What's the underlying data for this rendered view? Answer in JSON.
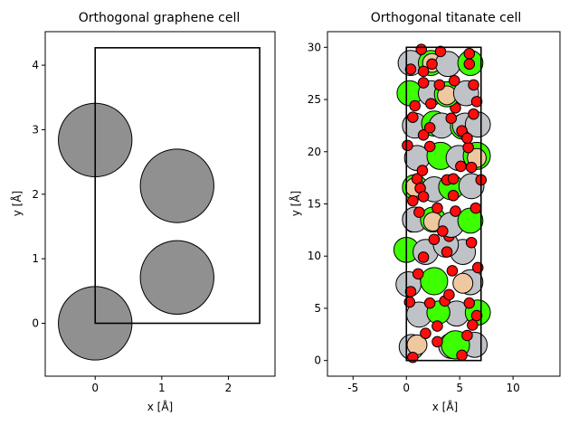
{
  "colors": {
    "carbon": "#909090",
    "oxygen": "#ff0d0d",
    "titanium": "#bfc2c7",
    "sodium": "#f0c8a0",
    "green": "#3dff00",
    "edge": "#000000",
    "cell": "#000000"
  },
  "chart_data": [
    {
      "type": "scatter",
      "title": "Orthogonal graphene cell",
      "xlabel": "x [Å]",
      "ylabel": "y [Å]",
      "xlim": [
        -0.75,
        2.7
      ],
      "ylim": [
        -0.82,
        4.52
      ],
      "xticks": [
        0,
        1,
        2
      ],
      "yticks": [
        0,
        1,
        2,
        3,
        4
      ],
      "cell": {
        "width": 2.47,
        "height": 4.27
      },
      "atoms": [
        {
          "x": 0.0,
          "y": 0.0,
          "r": 0.57,
          "element": "carbon"
        },
        {
          "x": 1.23,
          "y": 0.71,
          "r": 0.57,
          "element": "carbon"
        },
        {
          "x": 1.23,
          "y": 2.13,
          "r": 0.57,
          "element": "carbon"
        },
        {
          "x": 0.0,
          "y": 2.84,
          "r": 0.57,
          "element": "carbon"
        }
      ]
    },
    {
      "type": "scatter",
      "title": "Orthogonal titanate cell",
      "xlabel": "x [Å]",
      "ylabel": "y [Å]",
      "xlim": [
        -7.4,
        14.4
      ],
      "ylim": [
        -1.5,
        31.5
      ],
      "xticks": [
        -5,
        0,
        5,
        10
      ],
      "yticks": [
        0,
        5,
        10,
        15,
        20,
        25,
        30
      ],
      "cell": {
        "width": 7.0,
        "height": 30.0
      },
      "atoms": [
        {
          "x": 0.5,
          "y": 1.3,
          "r": 1.2,
          "element": "titanium"
        },
        {
          "x": 4.2,
          "y": 1.4,
          "r": 1.2,
          "element": "titanium"
        },
        {
          "x": 6.4,
          "y": 1.5,
          "r": 1.2,
          "element": "titanium"
        },
        {
          "x": 1.0,
          "y": 1.5,
          "r": 0.95,
          "element": "sodium"
        },
        {
          "x": 4.6,
          "y": 1.5,
          "r": 1.35,
          "element": "green"
        },
        {
          "x": 1.8,
          "y": 2.6,
          "r": 0.5,
          "element": "oxygen"
        },
        {
          "x": 2.9,
          "y": 1.8,
          "r": 0.5,
          "element": "oxygen"
        },
        {
          "x": 5.7,
          "y": 2.4,
          "r": 0.5,
          "element": "oxygen"
        },
        {
          "x": 0.6,
          "y": 0.3,
          "r": 0.5,
          "element": "oxygen"
        },
        {
          "x": 5.2,
          "y": 0.5,
          "r": 0.5,
          "element": "oxygen"
        },
        {
          "x": 1.2,
          "y": 4.4,
          "r": 1.2,
          "element": "titanium"
        },
        {
          "x": 4.7,
          "y": 4.5,
          "r": 1.2,
          "element": "titanium"
        },
        {
          "x": 3.0,
          "y": 4.6,
          "r": 1.1,
          "element": "green"
        },
        {
          "x": 6.7,
          "y": 4.6,
          "r": 1.2,
          "element": "green"
        },
        {
          "x": 0.3,
          "y": 5.6,
          "r": 0.5,
          "element": "oxygen"
        },
        {
          "x": 2.2,
          "y": 5.5,
          "r": 0.5,
          "element": "oxygen"
        },
        {
          "x": 3.6,
          "y": 5.7,
          "r": 0.5,
          "element": "oxygen"
        },
        {
          "x": 5.9,
          "y": 5.5,
          "r": 0.5,
          "element": "oxygen"
        },
        {
          "x": 6.2,
          "y": 3.4,
          "r": 0.5,
          "element": "oxygen"
        },
        {
          "x": 2.9,
          "y": 3.3,
          "r": 0.5,
          "element": "oxygen"
        },
        {
          "x": 6.6,
          "y": 4.3,
          "r": 0.5,
          "element": "oxygen"
        },
        {
          "x": 0.2,
          "y": 7.3,
          "r": 1.2,
          "element": "titanium"
        },
        {
          "x": 2.6,
          "y": 7.6,
          "r": 1.3,
          "element": "green"
        },
        {
          "x": 6.0,
          "y": 7.5,
          "r": 1.2,
          "element": "titanium"
        },
        {
          "x": 5.3,
          "y": 7.4,
          "r": 0.95,
          "element": "sodium"
        },
        {
          "x": 1.1,
          "y": 8.3,
          "r": 0.5,
          "element": "oxygen"
        },
        {
          "x": 4.0,
          "y": 6.3,
          "r": 0.5,
          "element": "oxygen"
        },
        {
          "x": 4.3,
          "y": 8.6,
          "r": 0.5,
          "element": "oxygen"
        },
        {
          "x": 6.7,
          "y": 8.9,
          "r": 0.5,
          "element": "oxygen"
        },
        {
          "x": 0.4,
          "y": 6.6,
          "r": 0.5,
          "element": "oxygen"
        },
        {
          "x": 0.0,
          "y": 10.6,
          "r": 1.2,
          "element": "green"
        },
        {
          "x": 1.8,
          "y": 10.4,
          "r": 1.2,
          "element": "titanium"
        },
        {
          "x": 5.3,
          "y": 10.4,
          "r": 1.2,
          "element": "titanium"
        },
        {
          "x": 3.7,
          "y": 11.1,
          "r": 1.2,
          "element": "titanium"
        },
        {
          "x": 1.6,
          "y": 9.9,
          "r": 0.5,
          "element": "oxygen"
        },
        {
          "x": 3.8,
          "y": 10.4,
          "r": 0.5,
          "element": "oxygen"
        },
        {
          "x": 6.1,
          "y": 11.3,
          "r": 0.5,
          "element": "oxygen"
        },
        {
          "x": 0.5,
          "y": 12.8,
          "r": 0.5,
          "element": "oxygen"
        },
        {
          "x": 4.0,
          "y": 11.9,
          "r": 0.5,
          "element": "oxygen"
        },
        {
          "x": 2.6,
          "y": 11.6,
          "r": 0.5,
          "element": "oxygen"
        },
        {
          "x": 0.8,
          "y": 13.5,
          "r": 1.2,
          "element": "titanium"
        },
        {
          "x": 2.5,
          "y": 13.5,
          "r": 1.2,
          "element": "green"
        },
        {
          "x": 2.5,
          "y": 13.3,
          "r": 0.9,
          "element": "sodium"
        },
        {
          "x": 4.2,
          "y": 13.0,
          "r": 1.2,
          "element": "titanium"
        },
        {
          "x": 6.0,
          "y": 13.4,
          "r": 1.2,
          "element": "green"
        },
        {
          "x": 1.2,
          "y": 14.2,
          "r": 0.5,
          "element": "oxygen"
        },
        {
          "x": 2.9,
          "y": 14.6,
          "r": 0.5,
          "element": "oxygen"
        },
        {
          "x": 4.6,
          "y": 14.3,
          "r": 0.5,
          "element": "oxygen"
        },
        {
          "x": 3.4,
          "y": 12.4,
          "r": 0.5,
          "element": "oxygen"
        },
        {
          "x": 6.5,
          "y": 14.6,
          "r": 0.5,
          "element": "oxygen"
        },
        {
          "x": 0.8,
          "y": 16.6,
          "r": 1.2,
          "element": "green"
        },
        {
          "x": 0.8,
          "y": 16.6,
          "r": 0.9,
          "element": "sodium"
        },
        {
          "x": 2.6,
          "y": 16.4,
          "r": 1.2,
          "element": "titanium"
        },
        {
          "x": 4.2,
          "y": 16.6,
          "r": 1.2,
          "element": "green"
        },
        {
          "x": 6.1,
          "y": 16.7,
          "r": 1.2,
          "element": "titanium"
        },
        {
          "x": 1.0,
          "y": 17.4,
          "r": 0.5,
          "element": "oxygen"
        },
        {
          "x": 1.3,
          "y": 16.5,
          "r": 0.5,
          "element": "oxygen"
        },
        {
          "x": 3.8,
          "y": 17.3,
          "r": 0.5,
          "element": "oxygen"
        },
        {
          "x": 4.4,
          "y": 17.4,
          "r": 0.5,
          "element": "oxygen"
        },
        {
          "x": 7.0,
          "y": 17.3,
          "r": 0.5,
          "element": "oxygen"
        },
        {
          "x": 0.6,
          "y": 15.3,
          "r": 0.5,
          "element": "oxygen"
        },
        {
          "x": 4.4,
          "y": 15.8,
          "r": 0.5,
          "element": "oxygen"
        },
        {
          "x": 1.6,
          "y": 15.7,
          "r": 0.5,
          "element": "oxygen"
        },
        {
          "x": 1.0,
          "y": 19.4,
          "r": 1.2,
          "element": "titanium"
        },
        {
          "x": 3.2,
          "y": 19.6,
          "r": 1.3,
          "element": "green"
        },
        {
          "x": 4.9,
          "y": 19.4,
          "r": 1.2,
          "element": "titanium"
        },
        {
          "x": 6.6,
          "y": 19.6,
          "r": 1.3,
          "element": "green"
        },
        {
          "x": 6.6,
          "y": 19.4,
          "r": 0.9,
          "element": "sodium"
        },
        {
          "x": 0.1,
          "y": 20.6,
          "r": 0.5,
          "element": "oxygen"
        },
        {
          "x": 1.5,
          "y": 18.2,
          "r": 0.5,
          "element": "oxygen"
        },
        {
          "x": 2.2,
          "y": 20.5,
          "r": 0.5,
          "element": "oxygen"
        },
        {
          "x": 5.1,
          "y": 18.6,
          "r": 0.5,
          "element": "oxygen"
        },
        {
          "x": 5.8,
          "y": 20.4,
          "r": 0.5,
          "element": "oxygen"
        },
        {
          "x": 6.1,
          "y": 18.5,
          "r": 0.5,
          "element": "oxygen"
        },
        {
          "x": 0.8,
          "y": 22.5,
          "r": 1.2,
          "element": "titanium"
        },
        {
          "x": 2.6,
          "y": 22.7,
          "r": 1.2,
          "element": "green"
        },
        {
          "x": 3.3,
          "y": 22.5,
          "r": 1.2,
          "element": "titanium"
        },
        {
          "x": 5.3,
          "y": 22.4,
          "r": 1.2,
          "element": "green"
        },
        {
          "x": 5.5,
          "y": 22.5,
          "r": 1.2,
          "element": "titanium"
        },
        {
          "x": 6.7,
          "y": 22.6,
          "r": 1.2,
          "element": "titanium"
        },
        {
          "x": 0.6,
          "y": 23.3,
          "r": 0.5,
          "element": "oxygen"
        },
        {
          "x": 1.6,
          "y": 21.6,
          "r": 0.5,
          "element": "oxygen"
        },
        {
          "x": 2.2,
          "y": 22.3,
          "r": 0.5,
          "element": "oxygen"
        },
        {
          "x": 4.2,
          "y": 23.2,
          "r": 0.5,
          "element": "oxygen"
        },
        {
          "x": 5.2,
          "y": 22.0,
          "r": 0.5,
          "element": "oxygen"
        },
        {
          "x": 6.3,
          "y": 23.6,
          "r": 0.5,
          "element": "oxygen"
        },
        {
          "x": 4.6,
          "y": 24.2,
          "r": 0.5,
          "element": "oxygen"
        },
        {
          "x": 5.7,
          "y": 21.3,
          "r": 0.5,
          "element": "oxygen"
        },
        {
          "x": 0.3,
          "y": 25.6,
          "r": 1.2,
          "element": "green"
        },
        {
          "x": 2.3,
          "y": 25.6,
          "r": 1.2,
          "element": "titanium"
        },
        {
          "x": 3.8,
          "y": 25.5,
          "r": 1.2,
          "element": "green"
        },
        {
          "x": 3.8,
          "y": 25.4,
          "r": 0.9,
          "element": "sodium"
        },
        {
          "x": 5.6,
          "y": 25.6,
          "r": 1.2,
          "element": "titanium"
        },
        {
          "x": 1.6,
          "y": 26.6,
          "r": 0.5,
          "element": "oxygen"
        },
        {
          "x": 2.3,
          "y": 24.6,
          "r": 0.5,
          "element": "oxygen"
        },
        {
          "x": 3.1,
          "y": 26.4,
          "r": 0.5,
          "element": "oxygen"
        },
        {
          "x": 4.5,
          "y": 26.8,
          "r": 0.5,
          "element": "oxygen"
        },
        {
          "x": 6.3,
          "y": 26.4,
          "r": 0.5,
          "element": "oxygen"
        },
        {
          "x": 6.6,
          "y": 24.8,
          "r": 0.5,
          "element": "oxygen"
        },
        {
          "x": 0.8,
          "y": 24.4,
          "r": 0.5,
          "element": "oxygen"
        },
        {
          "x": 0.4,
          "y": 28.5,
          "r": 1.2,
          "element": "titanium"
        },
        {
          "x": 2.3,
          "y": 28.5,
          "r": 1.2,
          "element": "green"
        },
        {
          "x": 2.4,
          "y": 28.5,
          "r": 0.9,
          "element": "sodium"
        },
        {
          "x": 3.9,
          "y": 28.4,
          "r": 1.2,
          "element": "titanium"
        },
        {
          "x": 6.0,
          "y": 28.5,
          "r": 1.2,
          "element": "green"
        },
        {
          "x": 0.4,
          "y": 27.9,
          "r": 0.5,
          "element": "oxygen"
        },
        {
          "x": 1.6,
          "y": 27.7,
          "r": 0.5,
          "element": "oxygen"
        },
        {
          "x": 2.4,
          "y": 28.4,
          "r": 0.5,
          "element": "oxygen"
        },
        {
          "x": 3.2,
          "y": 29.6,
          "r": 0.5,
          "element": "oxygen"
        },
        {
          "x": 5.9,
          "y": 29.4,
          "r": 0.5,
          "element": "oxygen"
        },
        {
          "x": 5.9,
          "y": 28.4,
          "r": 0.5,
          "element": "oxygen"
        },
        {
          "x": 1.4,
          "y": 29.8,
          "r": 0.5,
          "element": "oxygen"
        }
      ]
    }
  ]
}
